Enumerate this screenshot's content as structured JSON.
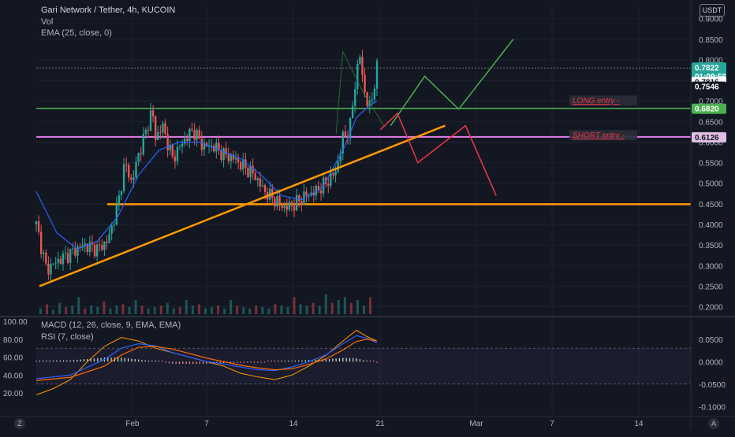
{
  "header": {
    "symbol_line": "Gari Network / Tether, 4h, KUCOIN",
    "vol_label": "Vol",
    "ema_label": "EMA (25, close, 0)",
    "currency": "USDT"
  },
  "lower_pane": {
    "macd_label": "MACD (12, 26, close, 9, EMA, EMA)",
    "rsi_label": "RSI (7, close)"
  },
  "corner_left": "Z",
  "corner_right": "A",
  "price_tags": {
    "current_price": "0.7822",
    "countdown": "01:09:56",
    "tag_2": "0.7816",
    "tag_3": "0.7546",
    "long_level": "0.6820",
    "short_level": "0.6126"
  },
  "annotations": {
    "long_entry": "LONG entry -",
    "short_entry": "SHORT entry -"
  },
  "colors": {
    "background": "#131722",
    "up": "#26a69a",
    "down": "#ef5350",
    "ema": "#2962ff",
    "long_line": "#4caf50",
    "short_line": "#e27ee8",
    "trend_line": "#ff9800",
    "long_path": "#4caf50",
    "short_path": "#f23645"
  },
  "chart_data": {
    "type": "candlestick",
    "x_ticks": [
      "Feb",
      "7",
      "14",
      "21",
      "Mar",
      "7",
      "14"
    ],
    "price_axis": {
      "ticks": [
        "0.9000",
        "0.8500",
        "0.8000",
        "0.7500",
        "0.7000",
        "0.6500",
        "0.6000",
        "0.5500",
        "0.5000",
        "0.4500",
        "0.4000",
        "0.3500",
        "0.3000",
        "0.2500",
        "0.2000"
      ],
      "range": [
        0.18,
        0.93
      ]
    },
    "rsi_axis": {
      "ticks": [
        "100.00",
        "80.00",
        "60.00",
        "40.00",
        "20.00"
      ],
      "range": [
        0,
        100
      ]
    },
    "macd_axis": {
      "ticks": [
        "0.0500",
        "0.0000",
        "-0.0500",
        "-0.1000"
      ],
      "range": [
        -0.11,
        0.09
      ]
    },
    "price_series": [
      [
        0,
        0.4
      ],
      [
        3,
        0.29
      ],
      [
        6,
        0.31
      ],
      [
        10,
        0.33
      ],
      [
        14,
        0.35
      ],
      [
        18,
        0.34
      ],
      [
        21,
        0.36
      ],
      [
        24,
        0.45
      ],
      [
        26,
        0.55
      ],
      [
        28,
        0.5
      ],
      [
        30,
        0.57
      ],
      [
        32,
        0.62
      ],
      [
        34,
        0.68
      ],
      [
        35,
        0.61
      ],
      [
        37,
        0.64
      ],
      [
        40,
        0.56
      ],
      [
        43,
        0.6
      ],
      [
        46,
        0.63
      ],
      [
        49,
        0.59
      ],
      [
        52,
        0.59
      ],
      [
        55,
        0.57
      ],
      [
        58,
        0.56
      ],
      [
        61,
        0.54
      ],
      [
        64,
        0.52
      ],
      [
        67,
        0.48
      ],
      [
        70,
        0.46
      ],
      [
        73,
        0.44
      ],
      [
        76,
        0.45
      ],
      [
        79,
        0.47
      ],
      [
        82,
        0.48
      ],
      [
        85,
        0.5
      ],
      [
        88,
        0.53
      ],
      [
        90,
        0.61
      ],
      [
        92,
        0.63
      ],
      [
        93,
        0.7
      ],
      [
        94,
        0.77
      ],
      [
        95,
        0.81
      ],
      [
        96,
        0.74
      ],
      [
        97,
        0.7
      ],
      [
        98,
        0.68
      ],
      [
        99,
        0.73
      ],
      [
        100,
        0.78
      ]
    ],
    "ema_series": [
      [
        0,
        0.48
      ],
      [
        6,
        0.38
      ],
      [
        12,
        0.34
      ],
      [
        18,
        0.36
      ],
      [
        24,
        0.42
      ],
      [
        30,
        0.52
      ],
      [
        36,
        0.58
      ],
      [
        42,
        0.6
      ],
      [
        48,
        0.6
      ],
      [
        54,
        0.58
      ],
      [
        60,
        0.56
      ],
      [
        66,
        0.52
      ],
      [
        72,
        0.47
      ],
      [
        78,
        0.46
      ],
      [
        84,
        0.49
      ],
      [
        90,
        0.58
      ],
      [
        94,
        0.66
      ],
      [
        98,
        0.69
      ],
      [
        100,
        0.7
      ]
    ],
    "levels": {
      "resistance": 0.682,
      "support": 0.6126,
      "base": 0.449
    },
    "trendline": [
      [
        0,
        0.25
      ],
      [
        120,
        0.64
      ]
    ],
    "long_path": [
      [
        104,
        0.64
      ],
      [
        114,
        0.76
      ],
      [
        124,
        0.68
      ],
      [
        140,
        0.85
      ]
    ],
    "short_path": [
      [
        101,
        0.63
      ],
      [
        106,
        0.67
      ],
      [
        112,
        0.55
      ],
      [
        126,
        0.64
      ],
      [
        135,
        0.47
      ]
    ],
    "volume": [
      0.2,
      0.35,
      0.15,
      0.4,
      0.25,
      0.3,
      0.6,
      0.2,
      0.3,
      0.25,
      0.45,
      0.2,
      0.3,
      0.35,
      0.25,
      0.5,
      0.3,
      0.2,
      0.25,
      0.3,
      0.4,
      0.2,
      0.25,
      0.5,
      0.3,
      0.35,
      0.2,
      0.25,
      0.3,
      0.2,
      0.5,
      0.3,
      0.25,
      0.2,
      0.3,
      0.25,
      0.2,
      0.35,
      0.3,
      0.25,
      0.6,
      0.35,
      0.3,
      0.4,
      0.3,
      0.7,
      0.4,
      0.5,
      0.6,
      0.4,
      0.5,
      0.3,
      0.6
    ],
    "rsi": [
      [
        0,
        18
      ],
      [
        5,
        25
      ],
      [
        10,
        35
      ],
      [
        15,
        55
      ],
      [
        20,
        72
      ],
      [
        25,
        82
      ],
      [
        30,
        78
      ],
      [
        35,
        70
      ],
      [
        40,
        65
      ],
      [
        45,
        60
      ],
      [
        50,
        55
      ],
      [
        55,
        50
      ],
      [
        60,
        42
      ],
      [
        65,
        38
      ],
      [
        70,
        35
      ],
      [
        75,
        40
      ],
      [
        80,
        50
      ],
      [
        85,
        62
      ],
      [
        90,
        78
      ],
      [
        94,
        90
      ],
      [
        97,
        83
      ],
      [
        100,
        78
      ]
    ],
    "macd_line": [
      [
        0,
        -0.038
      ],
      [
        10,
        -0.03
      ],
      [
        20,
        0.005
      ],
      [
        25,
        0.03
      ],
      [
        30,
        0.04
      ],
      [
        35,
        0.035
      ],
      [
        40,
        0.02
      ],
      [
        45,
        0.01
      ],
      [
        50,
        0.0
      ],
      [
        55,
        -0.005
      ],
      [
        60,
        -0.012
      ],
      [
        65,
        -0.018
      ],
      [
        70,
        -0.02
      ],
      [
        75,
        -0.012
      ],
      [
        80,
        0.0
      ],
      [
        85,
        0.015
      ],
      [
        90,
        0.04
      ],
      [
        94,
        0.058
      ],
      [
        97,
        0.052
      ],
      [
        100,
        0.042
      ]
    ],
    "signal_line": [
      [
        0,
        -0.042
      ],
      [
        10,
        -0.035
      ],
      [
        20,
        -0.01
      ],
      [
        25,
        0.015
      ],
      [
        30,
        0.032
      ],
      [
        35,
        0.034
      ],
      [
        40,
        0.028
      ],
      [
        45,
        0.018
      ],
      [
        50,
        0.008
      ],
      [
        55,
        0.0
      ],
      [
        60,
        -0.008
      ],
      [
        65,
        -0.014
      ],
      [
        70,
        -0.018
      ],
      [
        75,
        -0.016
      ],
      [
        80,
        -0.006
      ],
      [
        85,
        0.006
      ],
      [
        90,
        0.026
      ],
      [
        94,
        0.045
      ],
      [
        97,
        0.05
      ],
      [
        100,
        0.046
      ]
    ]
  }
}
